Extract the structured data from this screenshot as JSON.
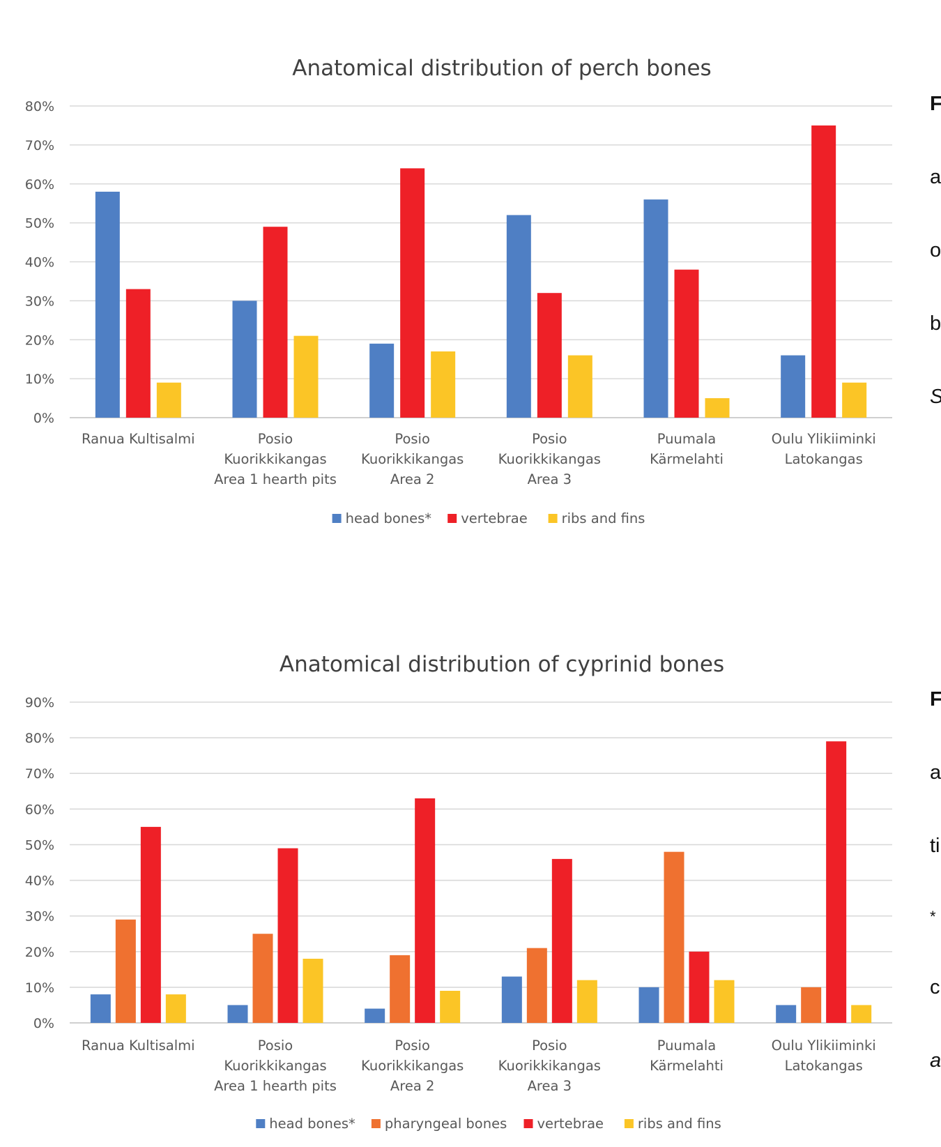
{
  "chart_data": [
    {
      "type": "bar",
      "title": "Anatomical distribution of perch bones",
      "categories": [
        "Ranua Kultisalmi",
        "Posio\nKuorikkikangas\nArea 1 hearth pits",
        "Posio\nKuorikkikangas\nArea 2",
        "Posio\nKuorikkikangas\nArea 3",
        "Puumala\nKärmelahti",
        "Oulu Ylikiiminki\nLatokangas"
      ],
      "series": [
        {
          "name": "head bones*",
          "color": "#4f7fc4",
          "values": [
            58,
            30,
            19,
            52,
            56,
            16
          ]
        },
        {
          "name": "vertebrae",
          "color": "#ee2027",
          "values": [
            33,
            49,
            64,
            32,
            38,
            75
          ]
        },
        {
          "name": "ribs and fins",
          "color": "#fbc526",
          "values": [
            9,
            21,
            17,
            16,
            5,
            9
          ]
        }
      ],
      "ylim": [
        0,
        80
      ],
      "yticks": [
        "0%",
        "10%",
        "20%",
        "30%",
        "40%",
        "50%",
        "60%",
        "70%",
        "80%"
      ],
      "grid": true,
      "legend": "bottom"
    },
    {
      "type": "bar",
      "title": "Anatomical distribution of cyprinid bones",
      "categories": [
        "Ranua Kultisalmi",
        "Posio\nKuorikkikangas\nArea 1 hearth pits",
        "Posio\nKuorikkikangas\nArea 2",
        "Posio\nKuorikkikangas\nArea 3",
        "Puumala\nKärmelahti",
        "Oulu Ylikiiminki\nLatokangas"
      ],
      "series": [
        {
          "name": "head bones*",
          "color": "#4f7fc4",
          "values": [
            8,
            5,
            4,
            13,
            10,
            5
          ]
        },
        {
          "name": "pharyngeal bones",
          "color": "#ef7130",
          "values": [
            29,
            25,
            19,
            21,
            48,
            10
          ]
        },
        {
          "name": "vertebrae",
          "color": "#ee2027",
          "values": [
            55,
            49,
            63,
            46,
            20,
            79
          ]
        },
        {
          "name": "ribs and fins",
          "color": "#fbc526",
          "values": [
            8,
            18,
            9,
            12,
            12,
            5
          ]
        }
      ],
      "ylim": [
        0,
        90
      ],
      "yticks": [
        "0%",
        "10%",
        "20%",
        "30%",
        "40%",
        "50%",
        "60%",
        "70%",
        "80%",
        "90%"
      ],
      "grid": true,
      "legend": "bottom"
    }
  ],
  "captions": [
    {
      "lines": [
        "F",
        "a",
        "o",
        "b",
        "S"
      ]
    },
    {
      "lines": [
        "F",
        "a",
        "ti",
        "*",
        "c",
        "a"
      ]
    }
  ]
}
